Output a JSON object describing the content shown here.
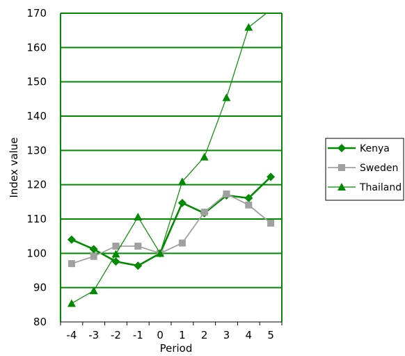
{
  "chart_data": {
    "type": "line",
    "xlabel": "Period",
    "ylabel": "Index value",
    "x": [
      -4,
      -3,
      -2,
      -1,
      0,
      1,
      2,
      3,
      4,
      5
    ],
    "ylim": [
      80,
      170
    ],
    "yticks": [
      80,
      90,
      100,
      110,
      120,
      130,
      140,
      150,
      160,
      170
    ],
    "grid": true,
    "legend_position": "right",
    "series": [
      {
        "name": "Kenya",
        "marker": "diamond",
        "color": "#008a00",
        "values": [
          104,
          101.2,
          97.6,
          96.4,
          100,
          114.7,
          111.7,
          116.9,
          116.1,
          122.3
        ]
      },
      {
        "name": "Sweden",
        "marker": "square",
        "color": "#a0a0a0",
        "values": [
          97,
          99.1,
          102.1,
          102.1,
          100,
          103,
          112,
          117.3,
          114.1,
          108.8
        ]
      },
      {
        "name": "Thailand",
        "marker": "triangle",
        "color": "#008a00",
        "values": [
          85.4,
          89.1,
          99.8,
          110.6,
          100,
          120.9,
          128.1,
          145.4,
          165.9,
          171
        ]
      }
    ]
  }
}
